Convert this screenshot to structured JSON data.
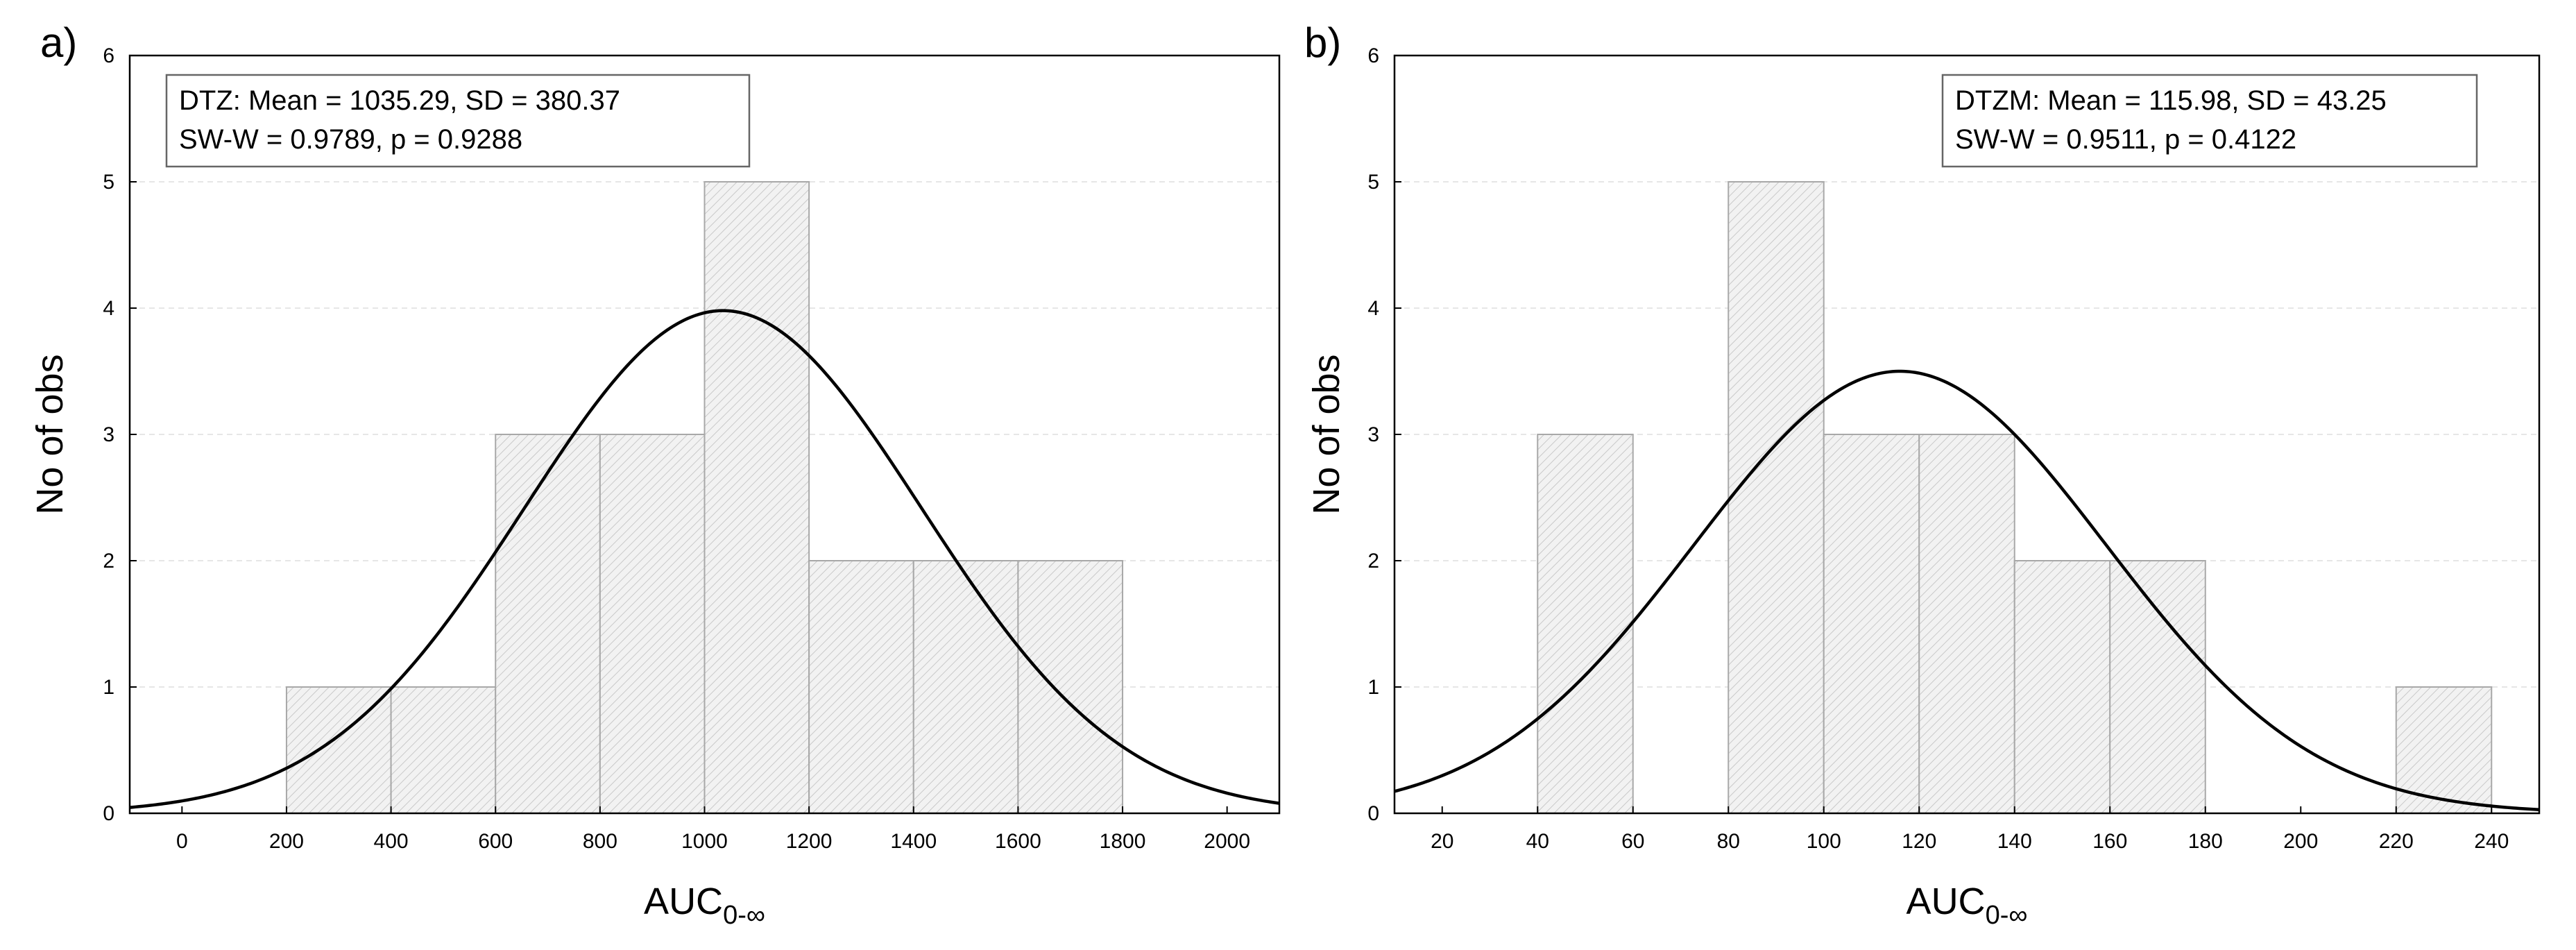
{
  "chart_data": [
    {
      "type": "bar",
      "panel_label": "a)",
      "xlabel": "AUC",
      "xlabel_subscript": "0-∞",
      "ylabel": "No of obs",
      "xlim": [
        -100,
        2100
      ],
      "ylim": [
        0,
        6
      ],
      "xticks": [
        0,
        200,
        400,
        600,
        800,
        1000,
        1200,
        1400,
        1600,
        1800,
        2000
      ],
      "yticks": [
        0,
        1,
        2,
        3,
        4,
        5,
        6
      ],
      "grid": true,
      "bins": [
        {
          "start": 200,
          "end": 400,
          "count": 1
        },
        {
          "start": 400,
          "end": 600,
          "count": 1
        },
        {
          "start": 600,
          "end": 800,
          "count": 3
        },
        {
          "start": 800,
          "end": 1000,
          "count": 3
        },
        {
          "start": 1000,
          "end": 1200,
          "count": 5
        },
        {
          "start": 1200,
          "end": 1400,
          "count": 2
        },
        {
          "start": 1400,
          "end": 1600,
          "count": 2
        },
        {
          "start": 1600,
          "end": 1800,
          "count": 2
        }
      ],
      "normal_curve": {
        "mean": 1035.29,
        "sd": 380.37,
        "peak": 3.98
      },
      "legend_lines": [
        "DTZ: Mean = 1035.29, SD = 380.37",
        "SW-W = 0.9789, p = 0.9288"
      ],
      "legend_position": "top-left"
    },
    {
      "type": "bar",
      "panel_label": "b)",
      "xlabel": "AUC",
      "xlabel_subscript": "0-∞",
      "ylabel": "No of obs",
      "xlim": [
        10,
        250
      ],
      "ylim": [
        0,
        6
      ],
      "xticks": [
        20,
        40,
        60,
        80,
        100,
        120,
        140,
        160,
        180,
        200,
        220,
        240
      ],
      "yticks": [
        0,
        1,
        2,
        3,
        4,
        5,
        6
      ],
      "grid": true,
      "bins": [
        {
          "start": 40,
          "end": 60,
          "count": 3
        },
        {
          "start": 80,
          "end": 100,
          "count": 5
        },
        {
          "start": 100,
          "end": 120,
          "count": 3
        },
        {
          "start": 120,
          "end": 140,
          "count": 3
        },
        {
          "start": 140,
          "end": 160,
          "count": 2
        },
        {
          "start": 160,
          "end": 180,
          "count": 2
        },
        {
          "start": 220,
          "end": 240,
          "count": 1
        }
      ],
      "normal_curve": {
        "mean": 115.98,
        "sd": 43.25,
        "peak": 3.5
      },
      "legend_lines": [
        "DTZM:  Mean = 115.98, SD = 43.25",
        "SW-W = 0.9511, p = 0.4122"
      ],
      "legend_position": "top-right"
    }
  ]
}
